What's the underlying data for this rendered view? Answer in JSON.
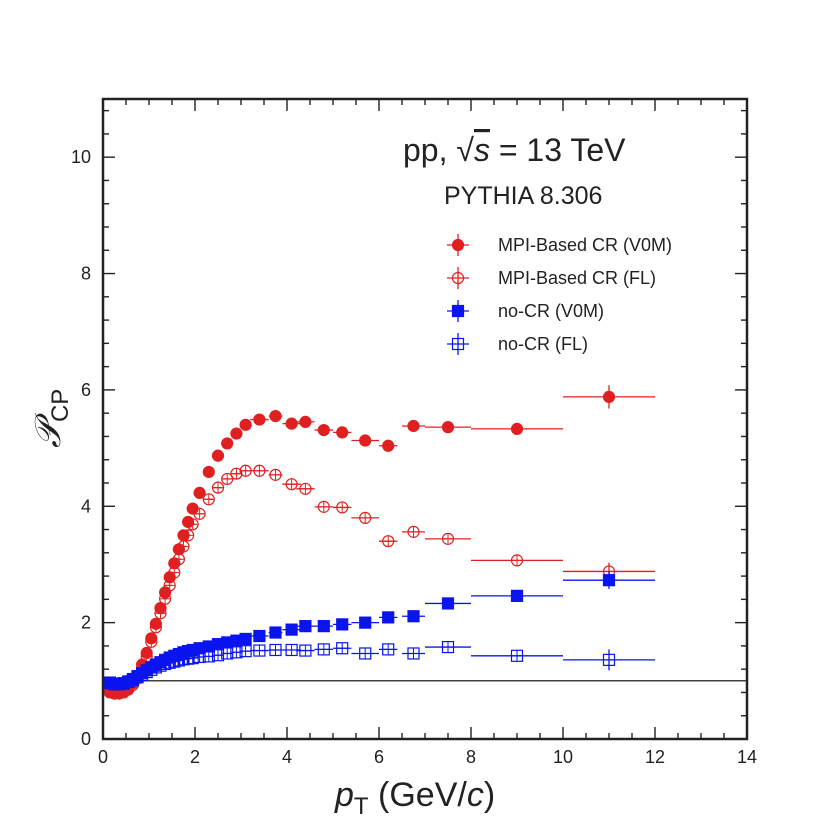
{
  "chart_data": {
    "type": "scatter",
    "title_lines": [
      "pp, √s = 13 TeV",
      "PYTHIA 8.306"
    ],
    "title_parts": {
      "prefix": "pp, √",
      "var": "s",
      "suffix": " = 13 TeV"
    },
    "subtitle": "PYTHIA 8.306",
    "xlabel_parts": {
      "var": "p",
      "sub": "T",
      "unit_open": " (GeV/",
      "unit_var": "c",
      "unit_close": ")"
    },
    "ylabel_parts": {
      "var": "𝒫",
      "sub": "CP"
    },
    "xlim": [
      0,
      14
    ],
    "ylim": [
      0,
      11
    ],
    "x_ticks": [
      0,
      2,
      4,
      6,
      8,
      10,
      12,
      14
    ],
    "y_ticks": [
      0,
      2,
      4,
      6,
      8,
      10
    ],
    "reference_line_y": 1,
    "legend_position": "top-right",
    "series": [
      {
        "name": "MPI-Based CR (V0M)",
        "color": "#e02020",
        "marker": "circle",
        "filled": true,
        "points": [
          {
            "x": 0.15,
            "y": 0.82,
            "xerr": 0.05
          },
          {
            "x": 0.25,
            "y": 0.8,
            "xerr": 0.05
          },
          {
            "x": 0.35,
            "y": 0.8,
            "xerr": 0.05
          },
          {
            "x": 0.45,
            "y": 0.82,
            "xerr": 0.05
          },
          {
            "x": 0.55,
            "y": 0.87,
            "xerr": 0.05
          },
          {
            "x": 0.65,
            "y": 0.96,
            "xerr": 0.05
          },
          {
            "x": 0.75,
            "y": 1.08,
            "xerr": 0.05
          },
          {
            "x": 0.85,
            "y": 1.28,
            "xerr": 0.05
          },
          {
            "x": 0.95,
            "y": 1.48,
            "xerr": 0.05
          },
          {
            "x": 1.05,
            "y": 1.73,
            "xerr": 0.05
          },
          {
            "x": 1.15,
            "y": 1.98,
            "xerr": 0.05
          },
          {
            "x": 1.25,
            "y": 2.25,
            "xerr": 0.05
          },
          {
            "x": 1.35,
            "y": 2.52,
            "xerr": 0.05
          },
          {
            "x": 1.45,
            "y": 2.78,
            "xerr": 0.05
          },
          {
            "x": 1.55,
            "y": 3.02,
            "xerr": 0.05
          },
          {
            "x": 1.65,
            "y": 3.26,
            "xerr": 0.05
          },
          {
            "x": 1.75,
            "y": 3.5,
            "xerr": 0.05
          },
          {
            "x": 1.85,
            "y": 3.73,
            "xerr": 0.05
          },
          {
            "x": 1.95,
            "y": 3.96,
            "xerr": 0.05
          },
          {
            "x": 2.1,
            "y": 4.23,
            "xerr": 0.1
          },
          {
            "x": 2.3,
            "y": 4.59,
            "xerr": 0.1
          },
          {
            "x": 2.5,
            "y": 4.87,
            "xerr": 0.1
          },
          {
            "x": 2.7,
            "y": 5.08,
            "xerr": 0.1
          },
          {
            "x": 2.9,
            "y": 5.25,
            "xerr": 0.1
          },
          {
            "x": 3.1,
            "y": 5.4,
            "xerr": 0.1
          },
          {
            "x": 3.4,
            "y": 5.49,
            "xerr": 0.2
          },
          {
            "x": 3.75,
            "y": 5.55,
            "xerr": 0.15
          },
          {
            "x": 4.1,
            "y": 5.42,
            "xerr": 0.2
          },
          {
            "x": 4.4,
            "y": 5.45,
            "xerr": 0.2
          },
          {
            "x": 4.8,
            "y": 5.31,
            "xerr": 0.2
          },
          {
            "x": 5.2,
            "y": 5.27,
            "xerr": 0.2
          },
          {
            "x": 5.7,
            "y": 5.13,
            "xerr": 0.3
          },
          {
            "x": 6.2,
            "y": 5.04,
            "xerr": 0.2
          },
          {
            "x": 6.75,
            "y": 5.38,
            "xerr": 0.25
          },
          {
            "x": 7.5,
            "y": 5.36,
            "xerr": 0.5
          },
          {
            "x": 9.0,
            "y": 5.33,
            "xerr": 1.0
          },
          {
            "x": 11.0,
            "y": 5.88,
            "xerr": 1.0,
            "yerr": 0.2
          }
        ]
      },
      {
        "name": "MPI-Based CR (FL)",
        "color": "#e02020",
        "marker": "circle",
        "filled": false,
        "points": [
          {
            "x": 0.15,
            "y": 0.8,
            "xerr": 0.05
          },
          {
            "x": 0.25,
            "y": 0.78,
            "xerr": 0.05
          },
          {
            "x": 0.35,
            "y": 0.78,
            "xerr": 0.05
          },
          {
            "x": 0.45,
            "y": 0.8,
            "xerr": 0.05
          },
          {
            "x": 0.55,
            "y": 0.85,
            "xerr": 0.05
          },
          {
            "x": 0.65,
            "y": 0.93,
            "xerr": 0.05
          },
          {
            "x": 0.75,
            "y": 1.04,
            "xerr": 0.05
          },
          {
            "x": 0.85,
            "y": 1.22,
            "xerr": 0.05
          },
          {
            "x": 0.95,
            "y": 1.42,
            "xerr": 0.05
          },
          {
            "x": 1.05,
            "y": 1.67,
            "xerr": 0.05
          },
          {
            "x": 1.15,
            "y": 1.92,
            "xerr": 0.05
          },
          {
            "x": 1.25,
            "y": 2.16,
            "xerr": 0.05
          },
          {
            "x": 1.35,
            "y": 2.41,
            "xerr": 0.05
          },
          {
            "x": 1.45,
            "y": 2.64,
            "xerr": 0.05
          },
          {
            "x": 1.55,
            "y": 2.86,
            "xerr": 0.05
          },
          {
            "x": 1.65,
            "y": 3.09,
            "xerr": 0.05
          },
          {
            "x": 1.75,
            "y": 3.31,
            "xerr": 0.05
          },
          {
            "x": 1.85,
            "y": 3.5,
            "xerr": 0.05
          },
          {
            "x": 1.95,
            "y": 3.69,
            "xerr": 0.05
          },
          {
            "x": 2.1,
            "y": 3.87,
            "xerr": 0.1
          },
          {
            "x": 2.3,
            "y": 4.12,
            "xerr": 0.1
          },
          {
            "x": 2.5,
            "y": 4.32,
            "xerr": 0.1
          },
          {
            "x": 2.7,
            "y": 4.47,
            "xerr": 0.1
          },
          {
            "x": 2.9,
            "y": 4.56,
            "xerr": 0.1
          },
          {
            "x": 3.1,
            "y": 4.61,
            "xerr": 0.1
          },
          {
            "x": 3.4,
            "y": 4.61,
            "xerr": 0.2
          },
          {
            "x": 3.75,
            "y": 4.54,
            "xerr": 0.15
          },
          {
            "x": 4.1,
            "y": 4.38,
            "xerr": 0.2
          },
          {
            "x": 4.4,
            "y": 4.3,
            "xerr": 0.2
          },
          {
            "x": 4.8,
            "y": 3.99,
            "xerr": 0.2
          },
          {
            "x": 5.2,
            "y": 3.98,
            "xerr": 0.2
          },
          {
            "x": 5.7,
            "y": 3.8,
            "xerr": 0.3
          },
          {
            "x": 6.2,
            "y": 3.4,
            "xerr": 0.2
          },
          {
            "x": 6.75,
            "y": 3.56,
            "xerr": 0.25
          },
          {
            "x": 7.5,
            "y": 3.44,
            "xerr": 0.5
          },
          {
            "x": 9.0,
            "y": 3.07,
            "xerr": 1.0
          },
          {
            "x": 11.0,
            "y": 2.88,
            "xerr": 1.0,
            "yerr": 0.15
          }
        ]
      },
      {
        "name": "no-CR (V0M)",
        "color": "#0a14f0",
        "marker": "square",
        "filled": true,
        "points": [
          {
            "x": 0.15,
            "y": 0.97,
            "xerr": 0.05
          },
          {
            "x": 0.25,
            "y": 0.95,
            "xerr": 0.05
          },
          {
            "x": 0.35,
            "y": 0.95,
            "xerr": 0.05
          },
          {
            "x": 0.45,
            "y": 0.96,
            "xerr": 0.05
          },
          {
            "x": 0.55,
            "y": 0.99,
            "xerr": 0.05
          },
          {
            "x": 0.65,
            "y": 1.03,
            "xerr": 0.05
          },
          {
            "x": 0.75,
            "y": 1.08,
            "xerr": 0.05
          },
          {
            "x": 0.85,
            "y": 1.13,
            "xerr": 0.05
          },
          {
            "x": 0.95,
            "y": 1.18,
            "xerr": 0.05
          },
          {
            "x": 1.05,
            "y": 1.23,
            "xerr": 0.05
          },
          {
            "x": 1.15,
            "y": 1.28,
            "xerr": 0.05
          },
          {
            "x": 1.25,
            "y": 1.32,
            "xerr": 0.05
          },
          {
            "x": 1.35,
            "y": 1.36,
            "xerr": 0.05
          },
          {
            "x": 1.45,
            "y": 1.4,
            "xerr": 0.05
          },
          {
            "x": 1.55,
            "y": 1.43,
            "xerr": 0.05
          },
          {
            "x": 1.65,
            "y": 1.46,
            "xerr": 0.05
          },
          {
            "x": 1.75,
            "y": 1.49,
            "xerr": 0.05
          },
          {
            "x": 1.85,
            "y": 1.51,
            "xerr": 0.05
          },
          {
            "x": 1.95,
            "y": 1.53,
            "xerr": 0.05
          },
          {
            "x": 2.1,
            "y": 1.56,
            "xerr": 0.1
          },
          {
            "x": 2.3,
            "y": 1.59,
            "xerr": 0.1
          },
          {
            "x": 2.5,
            "y": 1.63,
            "xerr": 0.1
          },
          {
            "x": 2.7,
            "y": 1.66,
            "xerr": 0.1
          },
          {
            "x": 2.9,
            "y": 1.69,
            "xerr": 0.1
          },
          {
            "x": 3.1,
            "y": 1.72,
            "xerr": 0.1
          },
          {
            "x": 3.4,
            "y": 1.77,
            "xerr": 0.2
          },
          {
            "x": 3.75,
            "y": 1.83,
            "xerr": 0.15
          },
          {
            "x": 4.1,
            "y": 1.88,
            "xerr": 0.2
          },
          {
            "x": 4.4,
            "y": 1.94,
            "xerr": 0.2
          },
          {
            "x": 4.8,
            "y": 1.94,
            "xerr": 0.2
          },
          {
            "x": 5.2,
            "y": 1.97,
            "xerr": 0.2
          },
          {
            "x": 5.7,
            "y": 2.0,
            "xerr": 0.3
          },
          {
            "x": 6.2,
            "y": 2.09,
            "xerr": 0.2
          },
          {
            "x": 6.75,
            "y": 2.11,
            "xerr": 0.25
          },
          {
            "x": 7.5,
            "y": 2.33,
            "xerr": 0.5
          },
          {
            "x": 9.0,
            "y": 2.46,
            "xerr": 1.0
          },
          {
            "x": 11.0,
            "y": 2.73,
            "xerr": 1.0,
            "yerr": 0.15
          }
        ]
      },
      {
        "name": "no-CR (FL)",
        "color": "#0a14f0",
        "marker": "square",
        "filled": false,
        "points": [
          {
            "x": 0.15,
            "y": 0.96,
            "xerr": 0.05
          },
          {
            "x": 0.25,
            "y": 0.94,
            "xerr": 0.05
          },
          {
            "x": 0.35,
            "y": 0.94,
            "xerr": 0.05
          },
          {
            "x": 0.45,
            "y": 0.95,
            "xerr": 0.05
          },
          {
            "x": 0.55,
            "y": 0.98,
            "xerr": 0.05
          },
          {
            "x": 0.65,
            "y": 1.01,
            "xerr": 0.05
          },
          {
            "x": 0.75,
            "y": 1.06,
            "xerr": 0.05
          },
          {
            "x": 0.85,
            "y": 1.1,
            "xerr": 0.05
          },
          {
            "x": 0.95,
            "y": 1.15,
            "xerr": 0.05
          },
          {
            "x": 1.05,
            "y": 1.19,
            "xerr": 0.05
          },
          {
            "x": 1.15,
            "y": 1.23,
            "xerr": 0.05
          },
          {
            "x": 1.25,
            "y": 1.26,
            "xerr": 0.05
          },
          {
            "x": 1.35,
            "y": 1.29,
            "xerr": 0.05
          },
          {
            "x": 1.45,
            "y": 1.31,
            "xerr": 0.05
          },
          {
            "x": 1.55,
            "y": 1.33,
            "xerr": 0.05
          },
          {
            "x": 1.65,
            "y": 1.35,
            "xerr": 0.05
          },
          {
            "x": 1.75,
            "y": 1.37,
            "xerr": 0.05
          },
          {
            "x": 1.85,
            "y": 1.38,
            "xerr": 0.05
          },
          {
            "x": 1.95,
            "y": 1.39,
            "xerr": 0.05
          },
          {
            "x": 2.1,
            "y": 1.41,
            "xerr": 0.1
          },
          {
            "x": 2.3,
            "y": 1.42,
            "xerr": 0.1
          },
          {
            "x": 2.5,
            "y": 1.44,
            "xerr": 0.1
          },
          {
            "x": 2.7,
            "y": 1.47,
            "xerr": 0.1
          },
          {
            "x": 2.9,
            "y": 1.49,
            "xerr": 0.1
          },
          {
            "x": 3.1,
            "y": 1.51,
            "xerr": 0.1
          },
          {
            "x": 3.4,
            "y": 1.52,
            "xerr": 0.2
          },
          {
            "x": 3.75,
            "y": 1.53,
            "xerr": 0.15
          },
          {
            "x": 4.1,
            "y": 1.53,
            "xerr": 0.2
          },
          {
            "x": 4.4,
            "y": 1.52,
            "xerr": 0.2
          },
          {
            "x": 4.8,
            "y": 1.54,
            "xerr": 0.2
          },
          {
            "x": 5.2,
            "y": 1.56,
            "xerr": 0.2
          },
          {
            "x": 5.7,
            "y": 1.47,
            "xerr": 0.3
          },
          {
            "x": 6.2,
            "y": 1.54,
            "xerr": 0.2
          },
          {
            "x": 6.75,
            "y": 1.47,
            "xerr": 0.25
          },
          {
            "x": 7.5,
            "y": 1.58,
            "xerr": 0.5
          },
          {
            "x": 9.0,
            "y": 1.43,
            "xerr": 1.0
          },
          {
            "x": 11.0,
            "y": 1.36,
            "xerr": 1.0,
            "yerr": 0.18
          }
        ]
      }
    ]
  }
}
